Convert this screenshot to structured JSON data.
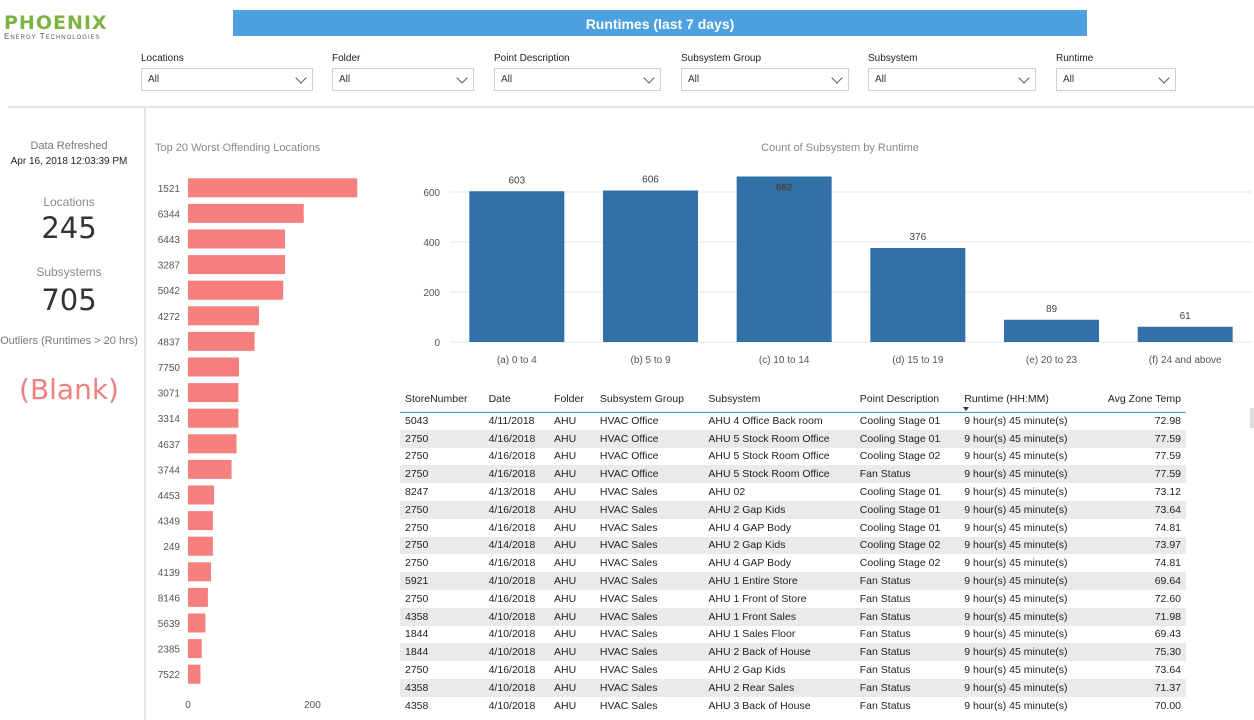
{
  "logo": {
    "main": "PHOENIX",
    "sub": "Energy Technologies"
  },
  "header": {
    "title": "Runtimes (last 7 days)"
  },
  "filters": [
    {
      "label": "Locations",
      "value": "All"
    },
    {
      "label": "Folder",
      "value": "All"
    },
    {
      "label": "Point Description",
      "value": "All"
    },
    {
      "label": "Subsystem Group",
      "value": "All"
    },
    {
      "label": "Subsystem",
      "value": "All"
    },
    {
      "label": "Runtime",
      "value": "All"
    }
  ],
  "kpis": {
    "refreshed_label": "Data Refreshed",
    "refreshed_value": "Apr 16, 2018 12:03:39 PM",
    "locations_label": "Locations",
    "locations_value": "245",
    "subsystems_label": "Subsystems",
    "subsystems_value": "705",
    "outliers_label": "Outliers (Runtimes > 20 hrs)",
    "outliers_value": "(Blank)"
  },
  "colors": {
    "header": "#4da1de",
    "bar_red": "#f47f7d",
    "bar_blue": "#3171a8",
    "logo_green": "#7cb342"
  },
  "chart_data": [
    {
      "type": "bar",
      "orientation": "horizontal",
      "title": "Top 20 Worst Offending Locations",
      "categories": [
        "1521",
        "6344",
        "6443",
        "3287",
        "5042",
        "4272",
        "4837",
        "7750",
        "3071",
        "3314",
        "4637",
        "3744",
        "4453",
        "4349",
        "249",
        "4139",
        "8146",
        "5639",
        "2385",
        "7522"
      ],
      "values": [
        272,
        186,
        156,
        156,
        153,
        114,
        107,
        82,
        81,
        81,
        78,
        70,
        42,
        40,
        40,
        37,
        32,
        28,
        22,
        20
      ],
      "xlim": [
        0,
        270
      ],
      "xticks": [
        "0",
        "200"
      ]
    },
    {
      "type": "bar",
      "title": "Count of Subsystem by Runtime",
      "categories": [
        "(a) 0 to 4",
        "(b) 5 to 9",
        "(c) 10 to 14",
        "(d) 15 to 19",
        "(e) 20 to 23",
        "(f) 24 and above"
      ],
      "values": [
        603,
        606,
        662,
        376,
        89,
        61
      ],
      "ylim": [
        0,
        700
      ],
      "yticks": [
        "0",
        "200",
        "400",
        "600"
      ],
      "grid": true
    }
  ],
  "table": {
    "columns": [
      "StoreNumber",
      "Date",
      "Folder",
      "Subsystem Group",
      "Subsystem",
      "Point Description",
      "Runtime (HH:MM)",
      "Avg Zone Temp"
    ],
    "rows": [
      [
        "5043",
        "4/11/2018",
        "AHU",
        "HVAC Office",
        "AHU 4 Office Back room",
        "Cooling Stage 01",
        "9 hour(s)  45 minute(s)",
        "72.98"
      ],
      [
        "2750",
        "4/16/2018",
        "AHU",
        "HVAC Office",
        "AHU 5 Stock Room Office",
        "Cooling Stage 01",
        "9 hour(s)  45 minute(s)",
        "77.59"
      ],
      [
        "2750",
        "4/16/2018",
        "AHU",
        "HVAC Office",
        "AHU 5 Stock Room Office",
        "Cooling Stage 02",
        "9 hour(s)  45 minute(s)",
        "77.59"
      ],
      [
        "2750",
        "4/16/2018",
        "AHU",
        "HVAC Office",
        "AHU 5 Stock Room Office",
        "Fan Status",
        "9 hour(s)  45 minute(s)",
        "77.59"
      ],
      [
        "8247",
        "4/13/2018",
        "AHU",
        "HVAC Sales",
        "AHU 02",
        "Cooling Stage 01",
        "9 hour(s)  45 minute(s)",
        "73.12"
      ],
      [
        "2750",
        "4/16/2018",
        "AHU",
        "HVAC Sales",
        "AHU 2 Gap Kids",
        "Cooling Stage 01",
        "9 hour(s)  45 minute(s)",
        "73.64"
      ],
      [
        "2750",
        "4/16/2018",
        "AHU",
        "HVAC Sales",
        "AHU 4 GAP Body",
        "Cooling Stage 01",
        "9 hour(s)  45 minute(s)",
        "74.81"
      ],
      [
        "2750",
        "4/14/2018",
        "AHU",
        "HVAC Sales",
        "AHU 2 Gap Kids",
        "Cooling Stage 02",
        "9 hour(s)  45 minute(s)",
        "73.97"
      ],
      [
        "2750",
        "4/16/2018",
        "AHU",
        "HVAC Sales",
        "AHU 4 GAP Body",
        "Cooling Stage 02",
        "9 hour(s)  45 minute(s)",
        "74.81"
      ],
      [
        "5921",
        "4/10/2018",
        "AHU",
        "HVAC Sales",
        "AHU 1 Entire Store",
        "Fan Status",
        "9 hour(s)  45 minute(s)",
        "69.64"
      ],
      [
        "2750",
        "4/16/2018",
        "AHU",
        "HVAC Sales",
        "AHU 1 Front of Store",
        "Fan Status",
        "9 hour(s)  45 minute(s)",
        "72.60"
      ],
      [
        "4358",
        "4/10/2018",
        "AHU",
        "HVAC Sales",
        "AHU 1 Front Sales",
        "Fan Status",
        "9 hour(s)  45 minute(s)",
        "71.98"
      ],
      [
        "1844",
        "4/10/2018",
        "AHU",
        "HVAC Sales",
        "AHU 1 Sales Floor",
        "Fan Status",
        "9 hour(s)  45 minute(s)",
        "69.43"
      ],
      [
        "1844",
        "4/10/2018",
        "AHU",
        "HVAC Sales",
        "AHU 2 Back of House",
        "Fan Status",
        "9 hour(s)  45 minute(s)",
        "75.30"
      ],
      [
        "2750",
        "4/16/2018",
        "AHU",
        "HVAC Sales",
        "AHU 2 Gap Kids",
        "Fan Status",
        "9 hour(s)  45 minute(s)",
        "73.64"
      ],
      [
        "4358",
        "4/10/2018",
        "AHU",
        "HVAC Sales",
        "AHU 2 Rear Sales",
        "Fan Status",
        "9 hour(s)  45 minute(s)",
        "71.37"
      ],
      [
        "4358",
        "4/10/2018",
        "AHU",
        "HVAC Sales",
        "AHU 3 Back of House",
        "Fan Status",
        "9 hour(s)  45 minute(s)",
        "70.00"
      ]
    ]
  }
}
